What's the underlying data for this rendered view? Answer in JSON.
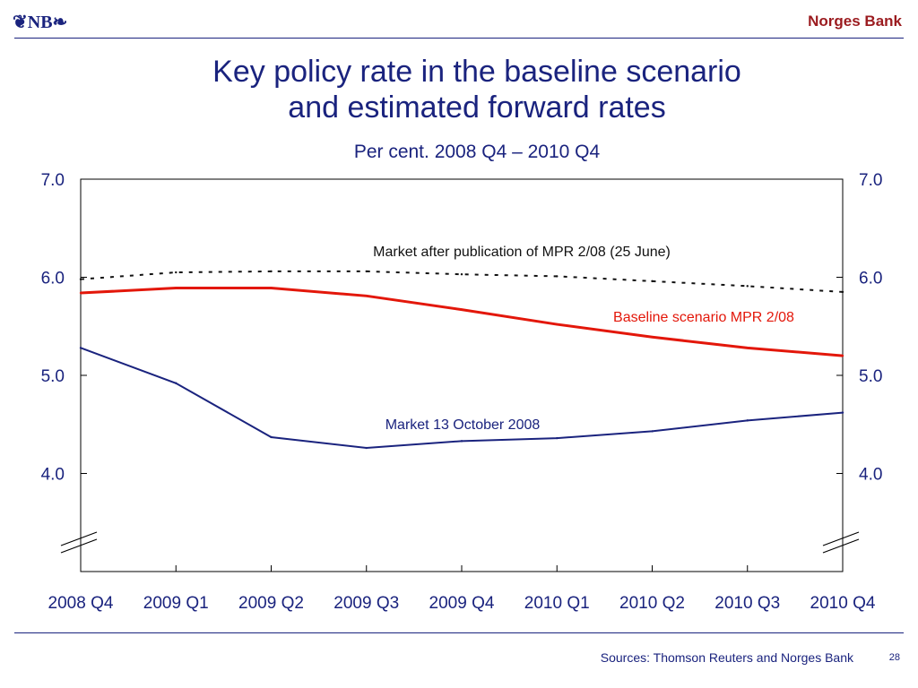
{
  "header": {
    "logo": "❦NB❧",
    "brand": "Norges Bank"
  },
  "footer": {
    "sources": "Sources: Thomson Reuters and Norges Bank",
    "page_number": "28"
  },
  "colors": {
    "blue": "#1a237e",
    "red": "#e3170a",
    "dark": "#111111"
  },
  "chart_data": {
    "type": "line",
    "title": "Key policy rate in the baseline scenario and estimated forward rates",
    "title_lines": [
      "Key policy rate in the baseline scenario",
      "and estimated forward rates"
    ],
    "subtitle": "Per cent. 2008 Q4 – 2010 Q4",
    "categories": [
      "2008 Q4",
      "2009 Q1",
      "2009 Q2",
      "2009 Q3",
      "2009 Q4",
      "2010 Q1",
      "2010 Q2",
      "2010 Q3",
      "2010 Q4"
    ],
    "ylim": [
      3.0,
      7.0
    ],
    "y_ticks": [
      "7.0",
      "6.0",
      "5.0",
      "4.0"
    ],
    "y_tick_values": [
      7.0,
      6.0,
      5.0,
      4.0
    ],
    "grid": false,
    "axis_break": true,
    "series": [
      {
        "name": "Market after publication of MPR 2/08 (25 June)",
        "style": "dotted",
        "color": "#111111",
        "values": [
          5.98,
          6.05,
          6.06,
          6.06,
          6.03,
          6.01,
          5.96,
          5.91,
          5.85
        ]
      },
      {
        "name": "Baseline scenario MPR 2/08",
        "style": "solid",
        "color": "#e3170a",
        "values": [
          5.84,
          5.89,
          5.89,
          5.81,
          5.67,
          5.52,
          5.39,
          5.28,
          5.2
        ]
      },
      {
        "name": "Market 13 October 2008",
        "style": "solid",
        "color": "#1a237e",
        "values": [
          5.28,
          4.92,
          4.37,
          4.26,
          4.33,
          4.36,
          4.43,
          4.54,
          4.62
        ]
      }
    ]
  }
}
